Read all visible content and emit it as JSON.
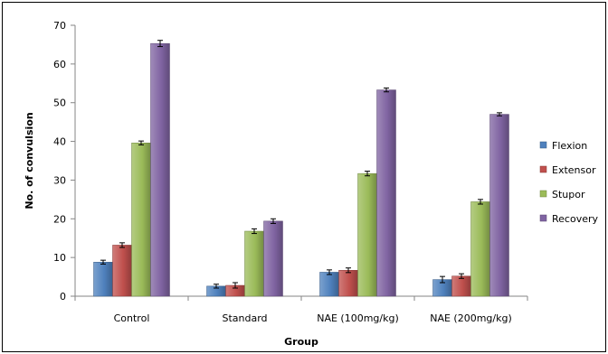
{
  "chart_data": {
    "type": "bar",
    "title": "",
    "xlabel": "Group",
    "ylabel": "No. of convulsion",
    "ylim": [
      0,
      70
    ],
    "yticks": [
      0,
      10,
      20,
      30,
      40,
      50,
      60,
      70
    ],
    "grid": false,
    "legend_position": "right",
    "categories": [
      "Control",
      "Standard",
      "NAE (100mg/kg)",
      "NAE (200mg/kg)"
    ],
    "series": [
      {
        "name": "Flexion",
        "color": "#4f81bd",
        "values": [
          8.8,
          2.6,
          6.2,
          4.3
        ],
        "errors": [
          0.5,
          0.5,
          0.6,
          0.8
        ]
      },
      {
        "name": "Extensor",
        "color": "#c0504d",
        "values": [
          13.2,
          2.8,
          6.7,
          5.2
        ],
        "errors": [
          0.6,
          0.7,
          0.6,
          0.6
        ]
      },
      {
        "name": "Stupor",
        "color": "#9bbb59",
        "values": [
          39.6,
          16.8,
          31.7,
          24.4
        ],
        "errors": [
          0.5,
          0.6,
          0.6,
          0.6
        ]
      },
      {
        "name": "Recovery",
        "color": "#8064a2",
        "values": [
          65.3,
          19.4,
          53.3,
          47.0
        ],
        "errors": [
          0.8,
          0.6,
          0.5,
          0.4
        ]
      }
    ]
  }
}
